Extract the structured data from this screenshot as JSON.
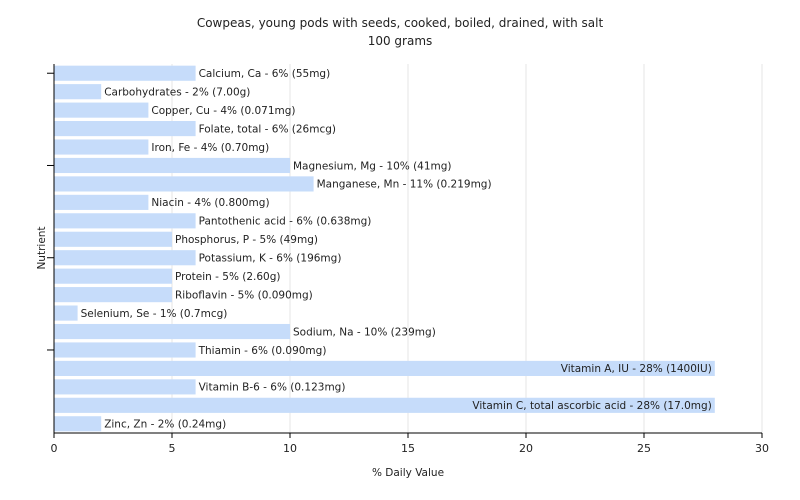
{
  "chart_data": {
    "type": "bar",
    "orientation": "horizontal",
    "title": "Cowpeas, young pods with seeds, cooked, boiled, drained, with salt",
    "subtitle": "100 grams",
    "xlabel": "% Daily Value",
    "ylabel": "Nutrient",
    "xlim": [
      0,
      30
    ],
    "xticks": [
      0,
      5,
      10,
      15,
      20,
      25,
      30
    ],
    "grid": true,
    "bar_color": "#c6dcfa",
    "categories": [
      "Calcium, Ca",
      "Carbohydrates",
      "Copper, Cu",
      "Folate, total",
      "Iron, Fe",
      "Magnesium, Mg",
      "Manganese, Mn",
      "Niacin",
      "Pantothenic acid",
      "Phosphorus, P",
      "Potassium, K",
      "Protein",
      "Riboflavin",
      "Selenium, Se",
      "Sodium, Na",
      "Thiamin",
      "Vitamin A, IU",
      "Vitamin B-6",
      "Vitamin C, total ascorbic acid",
      "Zinc, Zn"
    ],
    "values": [
      6,
      2,
      4,
      6,
      4,
      10,
      11,
      4,
      6,
      5,
      6,
      5,
      5,
      1,
      10,
      6,
      28,
      6,
      28,
      2
    ],
    "labels": [
      "Calcium, Ca - 6% (55mg)",
      "Carbohydrates - 2% (7.00g)",
      "Copper, Cu - 4% (0.071mg)",
      "Folate, total - 6% (26mcg)",
      "Iron, Fe - 4% (0.70mg)",
      "Magnesium, Mg - 10% (41mg)",
      "Manganese, Mn - 11% (0.219mg)",
      "Niacin - 4% (0.800mg)",
      "Pantothenic acid - 6% (0.638mg)",
      "Phosphorus, P - 5% (49mg)",
      "Potassium, K - 6% (196mg)",
      "Protein - 5% (2.60g)",
      "Riboflavin - 5% (0.090mg)",
      "Selenium, Se - 1% (0.7mcg)",
      "Sodium, Na - 10% (239mg)",
      "Thiamin - 6% (0.090mg)",
      "Vitamin A, IU - 28% (1400IU)",
      "Vitamin B-6 - 6% (0.123mg)",
      "Vitamin C, total ascorbic acid - 28% (17.0mg)",
      "Zinc, Zn - 2% (0.24mg)"
    ]
  }
}
